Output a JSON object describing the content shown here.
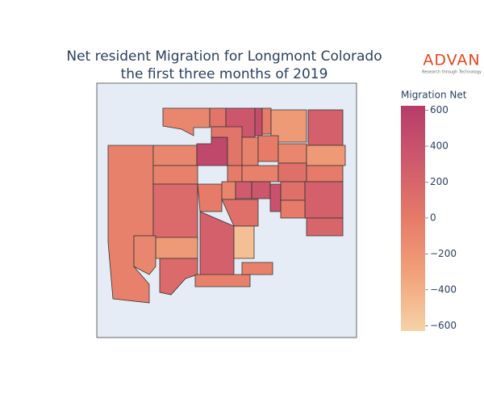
{
  "chart_data": {
    "type": "choropleth",
    "title": [
      "Net resident Migration for Longmont Colorado",
      "the first three months of 2019"
    ],
    "logo": {
      "name": "ADVAN",
      "tagline": "Research through Technology"
    },
    "colorbar_title": "Migration Net",
    "zlim": [
      -630,
      625
    ],
    "zticks": [
      600,
      400,
      200,
      {
        "value": 0,
        "label": "0"
      },
      {
        "value": -200,
        "label": "−200"
      },
      {
        "value": -400,
        "label": "−400"
      },
      {
        "value": -600,
        "label": "−600"
      }
    ],
    "colorscale": [
      "#f6d3a8",
      "#f2a27a",
      "#e57b68",
      "#cf5a6c",
      "#b63c6a"
    ],
    "values": [
      -50,
      -100,
      50,
      350,
      450,
      0,
      -250,
      250,
      -100,
      500,
      -50,
      50,
      0,
      -50,
      0,
      -100,
      -250,
      -50,
      100,
      0,
      150,
      0,
      -80,
      300,
      350,
      400,
      100,
      250,
      0,
      100,
      250,
      -500,
      -250,
      150,
      -50,
      -50,
      200,
      -100
    ]
  }
}
